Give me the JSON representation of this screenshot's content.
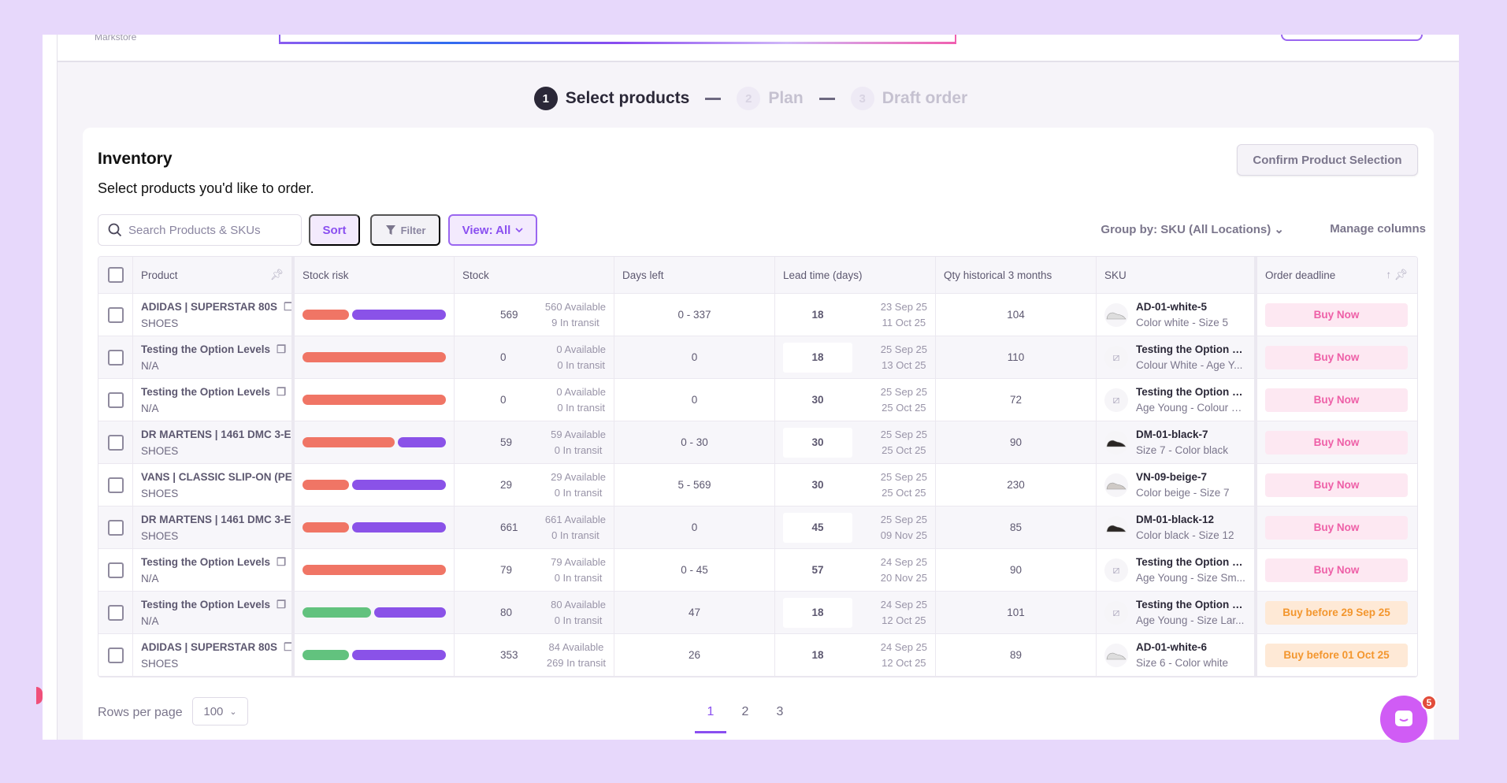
{
  "header": {
    "brand": "Markstore"
  },
  "stepper": {
    "steps": [
      {
        "num": "1",
        "label": "Select products",
        "state": "active"
      },
      {
        "num": "2",
        "label": "Plan",
        "state": "inactive"
      },
      {
        "num": "3",
        "label": "Draft order",
        "state": "inactive"
      }
    ]
  },
  "inventory": {
    "title": "Inventory",
    "subtitle": "Select products you'd like to order.",
    "confirm_label": "Confirm Product Selection"
  },
  "toolbar": {
    "search_placeholder": "Search Products & SKUs",
    "sort_label": "Sort",
    "filter_label": "Filter",
    "view_label": "View: All",
    "group_by_label": "Group by: SKU (All Locations)",
    "manage_columns_label": "Manage columns"
  },
  "colors": {
    "accent": "#8a4ff0",
    "risk_red": "#f07565",
    "risk_purple": "#8a52e8",
    "risk_green": "#62c27e",
    "buy_now_bg": "#fde8f2",
    "buy_now_text": "#ee5fa7",
    "buy_before_bg": "#fee9d6",
    "buy_before_text": "#f3962e"
  },
  "table": {
    "columns": [
      "Product",
      "Stock risk",
      "Stock",
      "Days left",
      "Lead time (days)",
      "Qty historical 3 months",
      "SKU",
      "Order deadline"
    ],
    "rows": [
      {
        "product": "ADIDAS | SUPERSTAR 80S",
        "category": "SHOES",
        "risk": [
          [
            "red",
            0.33
          ],
          [
            "purple",
            0.67
          ]
        ],
        "stock": "569",
        "available": "560 Available",
        "transit": "9 In transit",
        "days_left": "0 - 337",
        "lead": "18",
        "date1": "23 Sep 25",
        "date2": "11 Oct 25",
        "qty": "104",
        "sku": "AD-01-white-5",
        "sku_sub": "Color white - Size 5",
        "thumb": "shoe-white",
        "deadline": "Buy Now",
        "deadline_type": "now"
      },
      {
        "product": "Testing the Option Levels",
        "category": "N/A",
        "risk": [
          [
            "red",
            1
          ]
        ],
        "stock": "0",
        "available": "0 Available",
        "transit": "0 In transit",
        "days_left": "0",
        "lead": "18",
        "date1": "25 Sep 25",
        "date2": "13 Oct 25",
        "qty": "110",
        "sku": "Testing the Option L...",
        "sku_sub": "Colour White - Age Y...",
        "thumb": "no-image",
        "deadline": "Buy Now",
        "deadline_type": "now"
      },
      {
        "product": "Testing the Option Levels",
        "category": "N/A",
        "risk": [
          [
            "red",
            1
          ]
        ],
        "stock": "0",
        "available": "0 Available",
        "transit": "0 In transit",
        "days_left": "0",
        "lead": "30",
        "date1": "25 Sep 25",
        "date2": "25 Oct 25",
        "qty": "72",
        "sku": "Testing the Option L...",
        "sku_sub": "Age Young - Colour B...",
        "thumb": "no-image",
        "deadline": "Buy Now",
        "deadline_type": "now"
      },
      {
        "product": "DR MARTENS | 1461 DMC 3-E",
        "category": "SHOES",
        "risk": [
          [
            "red",
            0.66
          ],
          [
            "purple",
            0.34
          ]
        ],
        "stock": "59",
        "available": "59 Available",
        "transit": "0 In transit",
        "days_left": "0 - 30",
        "lead": "30",
        "date1": "25 Sep 25",
        "date2": "25 Oct 25",
        "qty": "90",
        "sku": "DM-01-black-7",
        "sku_sub": "Size 7 - Color black",
        "thumb": "shoe-black",
        "deadline": "Buy Now",
        "deadline_type": "now"
      },
      {
        "product": "VANS | CLASSIC SLIP-ON (PE",
        "category": "SHOES",
        "risk": [
          [
            "red",
            0.33
          ],
          [
            "purple",
            0.67
          ]
        ],
        "stock": "29",
        "available": "29 Available",
        "transit": "0 In transit",
        "days_left": "5 - 569",
        "lead": "30",
        "date1": "25 Sep 25",
        "date2": "25 Oct 25",
        "qty": "230",
        "sku": "VN-09-beige-7",
        "sku_sub": "Color beige - Size 7",
        "thumb": "shoe-beige",
        "deadline": "Buy Now",
        "deadline_type": "now"
      },
      {
        "product": "DR MARTENS | 1461 DMC 3-E",
        "category": "SHOES",
        "risk": [
          [
            "red",
            0.33
          ],
          [
            "purple",
            0.67
          ]
        ],
        "stock": "661",
        "available": "661 Available",
        "transit": "0 In transit",
        "days_left": "0",
        "lead": "45",
        "date1": "25 Sep 25",
        "date2": "09 Nov 25",
        "qty": "85",
        "sku": "DM-01-black-12",
        "sku_sub": "Color black - Size 12",
        "thumb": "shoe-black",
        "deadline": "Buy Now",
        "deadline_type": "now"
      },
      {
        "product": "Testing the Option Levels",
        "category": "N/A",
        "risk": [
          [
            "red",
            1
          ]
        ],
        "stock": "79",
        "available": "79 Available",
        "transit": "0 In transit",
        "days_left": "0 - 45",
        "lead": "57",
        "date1": "24 Sep 25",
        "date2": "20 Nov 25",
        "qty": "90",
        "sku": "Testing the Option L...",
        "sku_sub": "Age Young - Size Sm...",
        "thumb": "no-image",
        "deadline": "Buy Now",
        "deadline_type": "now"
      },
      {
        "product": "Testing the Option Levels",
        "category": "N/A",
        "risk": [
          [
            "green",
            0.49
          ],
          [
            "purple",
            0.51
          ]
        ],
        "stock": "80",
        "available": "80 Available",
        "transit": "0 In transit",
        "days_left": "47",
        "lead": "18",
        "date1": "24 Sep 25",
        "date2": "12 Oct 25",
        "qty": "101",
        "sku": "Testing the Option L...",
        "sku_sub": "Age Young - Size Lar...",
        "thumb": "no-image",
        "deadline": "Buy before 29 Sep 25",
        "deadline_type": "before"
      },
      {
        "product": "ADIDAS | SUPERSTAR 80S",
        "category": "SHOES",
        "risk": [
          [
            "green",
            0.33
          ],
          [
            "purple",
            0.67
          ]
        ],
        "stock": "353",
        "available": "84 Available",
        "transit": "269 In transit",
        "days_left": "26",
        "lead": "18",
        "date1": "24 Sep 25",
        "date2": "12 Oct 25",
        "qty": "89",
        "sku": "AD-01-white-6",
        "sku_sub": "Size 6 - Color white",
        "thumb": "shoe-white",
        "deadline": "Buy before 01 Oct 25",
        "deadline_type": "before"
      }
    ]
  },
  "pagination": {
    "rows_per_page_label": "Rows per page",
    "rows_per_page": "100",
    "pages": [
      "1",
      "2",
      "3"
    ],
    "current": "1"
  },
  "chat": {
    "badge": "5"
  }
}
